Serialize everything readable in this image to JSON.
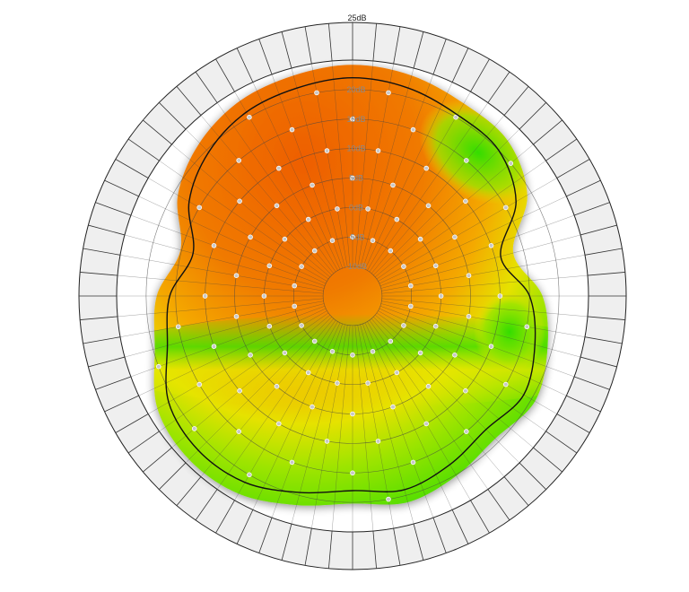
{
  "chart_data": {
    "type": "polar-radar",
    "title": "",
    "radial_axis": {
      "unit": "dB",
      "top_label": "25dB",
      "tick_labels": [
        "-10dB",
        "-5dB",
        "0dB",
        "5dB",
        "10dB",
        "15dB",
        "20dB"
      ],
      "tick_values": [
        -10,
        -5,
        0,
        5,
        10,
        15,
        20
      ],
      "range": [
        -15,
        25
      ]
    },
    "angular_divisions": 72,
    "grid": true,
    "colors": {
      "high": "#ee6600",
      "mid": "#f4b400",
      "low_mid": "#e8e800",
      "low": "#33dd00",
      "outline": "#111111",
      "grid": "#444444",
      "ring_fill": "#efefef",
      "point": "#c8c8c8"
    },
    "series": [
      {
        "name": "",
        "kind": "outline",
        "angles_deg": [
          0,
          15,
          30,
          45,
          60,
          75,
          90,
          105,
          120,
          135,
          150,
          165,
          180,
          195,
          210,
          225,
          240,
          255,
          270,
          285,
          300,
          315,
          330,
          345
        ],
        "values": [
          22,
          21.5,
          20.5,
          20,
          17,
          11,
          15,
          17,
          18.5,
          17,
          18,
          19,
          18,
          19.5,
          21.5,
          22,
          21,
          17.5,
          16,
          13,
          17,
          19.5,
          21,
          21.5
        ]
      }
    ]
  }
}
